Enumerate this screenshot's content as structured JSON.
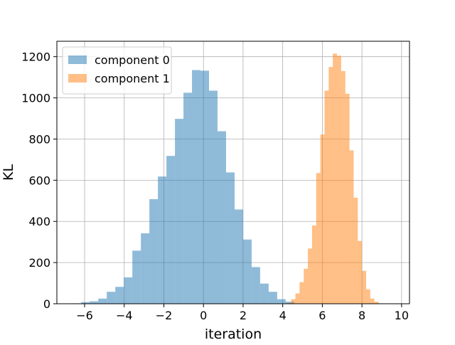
{
  "chart_data": {
    "type": "bar",
    "subtype": "histogram",
    "xlabel": "iteration",
    "ylabel": "KL",
    "xlim": [
      -7.4,
      10.4
    ],
    "ylim": [
      0,
      1275
    ],
    "xticks": [
      -6,
      -4,
      -2,
      0,
      2,
      4,
      6,
      8,
      10
    ],
    "yticks": [
      0,
      200,
      400,
      600,
      800,
      1000,
      1200
    ],
    "grid": true,
    "legend_position": "top-left",
    "series": [
      {
        "name": "component 0",
        "color": "#1f77b4",
        "alpha": 0.5,
        "bin_edges": [
          -6.6,
          -6.17,
          -5.74,
          -5.31,
          -4.88,
          -4.45,
          -4.02,
          -3.59,
          -3.16,
          -2.73,
          -2.3,
          -1.87,
          -1.44,
          -1.01,
          -0.58,
          -0.15,
          0.28,
          0.71,
          1.14,
          1.57,
          2.0,
          2.43,
          2.86,
          3.29,
          3.72,
          4.15,
          4.58
        ],
        "counts": [
          2,
          8,
          12,
          25,
          58,
          82,
          128,
          258,
          342,
          508,
          618,
          718,
          898,
          1025,
          1135,
          1132,
          1035,
          838,
          638,
          458,
          312,
          178,
          98,
          58,
          22,
          10
        ]
      },
      {
        "name": "component 1",
        "color": "#ff7f0e",
        "alpha": 0.5,
        "bin_edges": [
          4.22,
          4.43,
          4.64,
          4.85,
          5.06,
          5.27,
          5.48,
          5.69,
          5.9,
          6.11,
          6.32,
          6.53,
          6.74,
          6.95,
          7.16,
          7.37,
          7.58,
          7.79,
          8.0,
          8.21,
          8.42,
          8.63,
          8.84,
          9.05
        ],
        "counts": [
          4,
          22,
          50,
          105,
          170,
          268,
          380,
          635,
          822,
          1035,
          1150,
          1215,
          1205,
          1130,
          1020,
          745,
          515,
          305,
          160,
          70,
          25,
          10,
          2
        ]
      }
    ]
  }
}
